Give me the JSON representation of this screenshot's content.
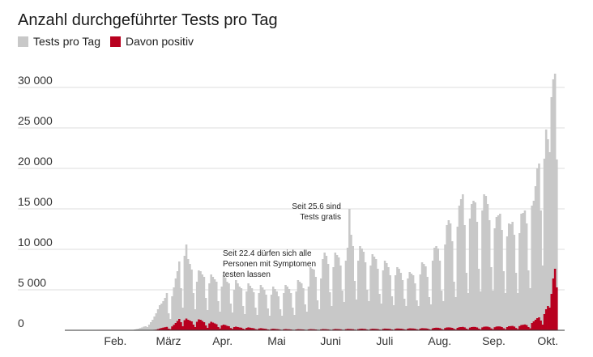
{
  "chart_data": {
    "type": "bar",
    "title": "Anzahl durchgeführter Tests pro Tag",
    "xlabel": "",
    "ylabel": "",
    "ylim": [
      0,
      30000
    ],
    "yticks": [
      0,
      5000,
      10000,
      15000,
      20000,
      25000,
      30000
    ],
    "ytick_labels": [
      "0",
      "5 000",
      "10 000",
      "15 000",
      "20 000",
      "25 000",
      "30 000"
    ],
    "xtick_labels": [
      "Feb.",
      "März",
      "Apr.",
      "Mai",
      "Juni",
      "Juli",
      "Aug.",
      "Sep.",
      "Okt."
    ],
    "grid": "horizontal",
    "legend_position": "top-left",
    "colors": {
      "tests": "#c8c8c8",
      "positive": "#b8001f"
    },
    "x_start": "2020-01-17",
    "x_end": "2020-10-24",
    "series": [
      {
        "name": "Tests pro Tag",
        "color": "#c8c8c8",
        "start": "2020-02-25",
        "values": [
          100,
          150,
          200,
          280,
          350,
          450,
          500,
          400,
          700,
          1000,
          1300,
          1700,
          2100,
          2600,
          3100,
          3300,
          3600,
          4000,
          4600,
          2100,
          1400,
          4200,
          5300,
          6400,
          7300,
          8500,
          5200,
          2800,
          9200,
          10600,
          8800,
          8200,
          7500,
          4600,
          2600,
          6000,
          7400,
          7300,
          6900,
          6600,
          4000,
          2500,
          5800,
          6900,
          6600,
          6300,
          6000,
          3600,
          2300,
          5400,
          6800,
          6500,
          6000,
          5800,
          3300,
          2200,
          5000,
          6200,
          5800,
          5400,
          5200,
          3000,
          2000,
          4800,
          5800,
          5500,
          5200,
          4700,
          2800,
          1900,
          4600,
          5600,
          5300,
          5000,
          4400,
          2700,
          1800,
          4400,
          5400,
          5100,
          4800,
          4200,
          2600,
          1800,
          4600,
          5600,
          5400,
          5100,
          4600,
          2800,
          1900,
          4800,
          6200,
          6000,
          5800,
          5200,
          3200,
          2300,
          5400,
          7800,
          7600,
          7500,
          6600,
          3700,
          2600,
          6400,
          8800,
          9600,
          9200,
          8200,
          4700,
          3000,
          7800,
          9600,
          9300,
          9000,
          8000,
          4900,
          3500,
          8600,
          10200,
          15000,
          11800,
          10400,
          6100,
          3800,
          8600,
          10400,
          10100,
          9700,
          8400,
          5000,
          3600,
          8000,
          9400,
          9100,
          8800,
          7600,
          4500,
          3300,
          7400,
          8600,
          8300,
          7800,
          6800,
          4200,
          3100,
          6800,
          7800,
          7600,
          7100,
          6200,
          3900,
          3000,
          6400,
          7200,
          7000,
          6800,
          5800,
          3700,
          3000,
          6900,
          8400,
          8200,
          7900,
          6600,
          4100,
          3200,
          8600,
          10200,
          10400,
          10100,
          8600,
          4900,
          3600,
          10600,
          13000,
          13600,
          13200,
          11000,
          6000,
          4100,
          12800,
          15400,
          16200,
          16800,
          13000,
          7100,
          4600,
          13800,
          15600,
          16000,
          15800,
          13400,
          7600,
          4800,
          14800,
          16800,
          16600,
          15600,
          13600,
          7800,
          4900,
          12600,
          14000,
          14200,
          14400,
          12400,
          7300,
          4600,
          11600,
          13200,
          13100,
          13400,
          11800,
          7100,
          4600,
          12000,
          14400,
          14500,
          14800,
          13200,
          7400,
          5200,
          15400,
          16000,
          17800,
          20000,
          20600,
          14800,
          8000,
          21200,
          24800,
          23600,
          22000,
          28800,
          31000,
          31700,
          21100
        ]
      },
      {
        "name": "Davon positiv",
        "color": "#b8001f",
        "start": "2020-02-25",
        "values": [
          0,
          0,
          2,
          5,
          8,
          10,
          12,
          10,
          15,
          20,
          40,
          60,
          80,
          150,
          220,
          280,
          330,
          380,
          420,
          200,
          150,
          480,
          680,
          900,
          1150,
          1400,
          1000,
          500,
          1250,
          1450,
          1300,
          1200,
          1100,
          700,
          400,
          1050,
          1350,
          1300,
          1150,
          1000,
          600,
          300,
          850,
          1050,
          950,
          850,
          750,
          400,
          220,
          600,
          700,
          650,
          550,
          500,
          280,
          180,
          400,
          450,
          400,
          350,
          320,
          200,
          120,
          300,
          360,
          320,
          280,
          250,
          150,
          90,
          220,
          260,
          230,
          200,
          170,
          100,
          70,
          160,
          190,
          170,
          150,
          130,
          80,
          50,
          120,
          150,
          130,
          120,
          100,
          60,
          40,
          100,
          130,
          120,
          110,
          100,
          60,
          40,
          110,
          140,
          130,
          120,
          100,
          60,
          40,
          110,
          150,
          140,
          130,
          110,
          70,
          40,
          120,
          160,
          150,
          140,
          120,
          70,
          40,
          130,
          170,
          160,
          150,
          130,
          80,
          50,
          140,
          180,
          200,
          180,
          160,
          90,
          50,
          150,
          190,
          180,
          170,
          150,
          90,
          60,
          170,
          210,
          200,
          190,
          160,
          100,
          60,
          180,
          220,
          210,
          200,
          170,
          110,
          70,
          200,
          240,
          230,
          220,
          190,
          120,
          70,
          210,
          260,
          250,
          240,
          210,
          130,
          80,
          240,
          300,
          320,
          310,
          270,
          160,
          90,
          280,
          350,
          360,
          340,
          300,
          180,
          100,
          300,
          380,
          400,
          420,
          360,
          200,
          120,
          330,
          400,
          420,
          410,
          350,
          210,
          120,
          360,
          440,
          460,
          450,
          380,
          230,
          130,
          380,
          460,
          480,
          470,
          400,
          250,
          140,
          400,
          500,
          520,
          540,
          460,
          280,
          160,
          520,
          650,
          680,
          720,
          640,
          400,
          240,
          900,
          1100,
          1300,
          1500,
          1600,
          1200,
          700,
          2000,
          2600,
          3000,
          2800,
          4500,
          6400,
          7600,
          5300
        ]
      }
    ],
    "annotations": [
      {
        "lines": [
          "Seit 22.4 dürfen sich alle",
          "Personen mit Symptomen",
          "testen lassen"
        ]
      },
      {
        "lines": [
          "Seit 25.6 sind",
          "Tests gratis"
        ]
      }
    ]
  }
}
